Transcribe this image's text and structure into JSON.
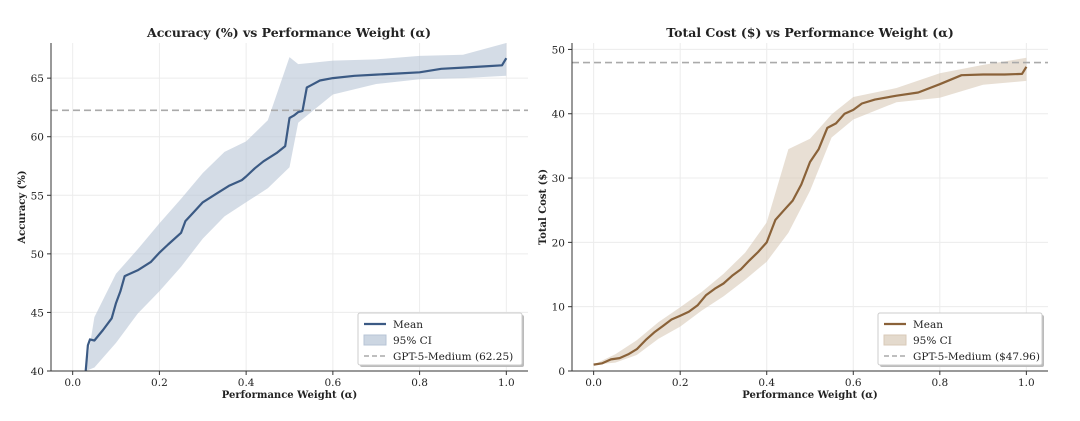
{
  "chart_data": [
    {
      "type": "line",
      "title": "Accuracy (%) vs Performance Weight (α)",
      "xlabel": "Performance Weight (α)",
      "ylabel": "Accuracy (%)",
      "xlim": [
        -0.05,
        1.05
      ],
      "ylim": [
        40,
        68
      ],
      "xticks": [
        0.0,
        0.2,
        0.4,
        0.6,
        0.8,
        1.0
      ],
      "xtick_labels": [
        "0.0",
        "0.2",
        "0.4",
        "0.6",
        "0.8",
        "1.0"
      ],
      "yticks": [
        40,
        45,
        50,
        55,
        60,
        65
      ],
      "ytick_labels": [
        "40",
        "45",
        "50",
        "55",
        "60",
        "65"
      ],
      "grid": true,
      "legend_position": "bottom-right",
      "colors": {
        "mean": "#3b5a84",
        "ci": "#b7c4d6",
        "ref": "#aaaaaa"
      },
      "series": [
        {
          "name": "Mean",
          "x": [
            0.03,
            0.035,
            0.04,
            0.05,
            0.07,
            0.09,
            0.1,
            0.11,
            0.12,
            0.15,
            0.18,
            0.2,
            0.22,
            0.25,
            0.26,
            0.28,
            0.3,
            0.33,
            0.36,
            0.39,
            0.4,
            0.42,
            0.44,
            0.47,
            0.49,
            0.5,
            0.51,
            0.52,
            0.53,
            0.54,
            0.55,
            0.57,
            0.6,
            0.65,
            0.7,
            0.75,
            0.8,
            0.85,
            0.9,
            0.95,
            0.99,
            1.0
          ],
          "y": [
            40.0,
            42.2,
            42.7,
            42.6,
            43.5,
            44.5,
            45.8,
            46.8,
            48.1,
            48.6,
            49.3,
            50.1,
            50.8,
            51.8,
            52.8,
            53.6,
            54.4,
            55.1,
            55.8,
            56.3,
            56.6,
            57.3,
            57.9,
            58.6,
            59.2,
            61.6,
            61.8,
            62.1,
            62.2,
            64.2,
            64.4,
            64.8,
            65.0,
            65.2,
            65.3,
            65.4,
            65.5,
            65.8,
            65.9,
            66.0,
            66.1,
            66.7
          ]
        },
        {
          "name": "95% CI",
          "x": [
            0.03,
            0.05,
            0.1,
            0.15,
            0.2,
            0.25,
            0.3,
            0.35,
            0.4,
            0.45,
            0.5,
            0.52,
            0.55,
            0.6,
            0.7,
            0.8,
            0.9,
            1.0
          ],
          "lower": [
            40.0,
            40.3,
            42.4,
            44.9,
            46.8,
            48.9,
            51.3,
            53.2,
            54.4,
            55.6,
            57.4,
            61.2,
            62.1,
            63.6,
            64.5,
            64.9,
            65.0,
            65.2
          ],
          "upper": [
            40.0,
            44.6,
            48.3,
            50.4,
            52.6,
            54.7,
            56.9,
            58.7,
            59.6,
            61.4,
            66.8,
            66.2,
            66.3,
            66.5,
            66.6,
            66.9,
            67.0,
            68.0
          ]
        },
        {
          "name": "GPT-5-Medium (62.25)",
          "kind": "hline",
          "value": 62.25
        }
      ]
    },
    {
      "type": "line",
      "title": "Total Cost ($) vs Performance Weight (α)",
      "xlabel": "Performance Weight (α)",
      "ylabel": "Total Cost ($)",
      "xlim": [
        -0.05,
        1.05
      ],
      "ylim": [
        0,
        51
      ],
      "xticks": [
        0.0,
        0.2,
        0.4,
        0.6,
        0.8,
        1.0
      ],
      "xtick_labels": [
        "0.0",
        "0.2",
        "0.4",
        "0.6",
        "0.8",
        "1.0"
      ],
      "yticks": [
        0,
        10,
        20,
        30,
        40,
        50
      ],
      "ytick_labels": [
        "0",
        "10",
        "20",
        "30",
        "40",
        "50"
      ],
      "grid": true,
      "legend_position": "bottom-right",
      "colors": {
        "mean": "#8a6239",
        "ci": "#d9cab8",
        "ref": "#aaaaaa"
      },
      "series": [
        {
          "name": "Mean",
          "x": [
            0.0,
            0.02,
            0.04,
            0.06,
            0.08,
            0.1,
            0.12,
            0.14,
            0.16,
            0.18,
            0.2,
            0.22,
            0.24,
            0.26,
            0.28,
            0.3,
            0.32,
            0.34,
            0.36,
            0.38,
            0.4,
            0.42,
            0.44,
            0.46,
            0.48,
            0.5,
            0.52,
            0.54,
            0.56,
            0.58,
            0.6,
            0.62,
            0.65,
            0.7,
            0.75,
            0.8,
            0.85,
            0.9,
            0.95,
            0.99,
            1.0
          ],
          "y": [
            1.0,
            1.2,
            1.8,
            2.0,
            2.6,
            3.4,
            4.8,
            6.0,
            7.0,
            8.0,
            8.6,
            9.2,
            10.2,
            11.8,
            12.8,
            13.6,
            14.8,
            15.8,
            17.2,
            18.5,
            20.0,
            23.5,
            25.0,
            26.5,
            29.0,
            32.5,
            34.5,
            37.8,
            38.5,
            40.0,
            40.6,
            41.6,
            42.2,
            42.8,
            43.3,
            44.6,
            46.0,
            46.1,
            46.1,
            46.2,
            47.3
          ]
        },
        {
          "name": "95% CI",
          "x": [
            0.0,
            0.05,
            0.1,
            0.15,
            0.2,
            0.25,
            0.3,
            0.35,
            0.4,
            0.45,
            0.5,
            0.55,
            0.6,
            0.7,
            0.8,
            0.9,
            1.0
          ],
          "lower": [
            1.0,
            1.3,
            2.5,
            5.0,
            6.9,
            9.4,
            11.6,
            14.2,
            17.0,
            21.5,
            28.0,
            36.3,
            39.1,
            41.8,
            42.5,
            44.5,
            45.1
          ],
          "upper": [
            1.0,
            2.6,
            4.8,
            7.6,
            9.9,
            12.3,
            15.1,
            18.4,
            23.1,
            34.5,
            36.1,
            39.9,
            42.6,
            44.0,
            46.3,
            47.6,
            48.7
          ]
        },
        {
          "name": "GPT-5-Medium ($47.96)",
          "kind": "hline",
          "value": 47.96
        }
      ]
    }
  ]
}
